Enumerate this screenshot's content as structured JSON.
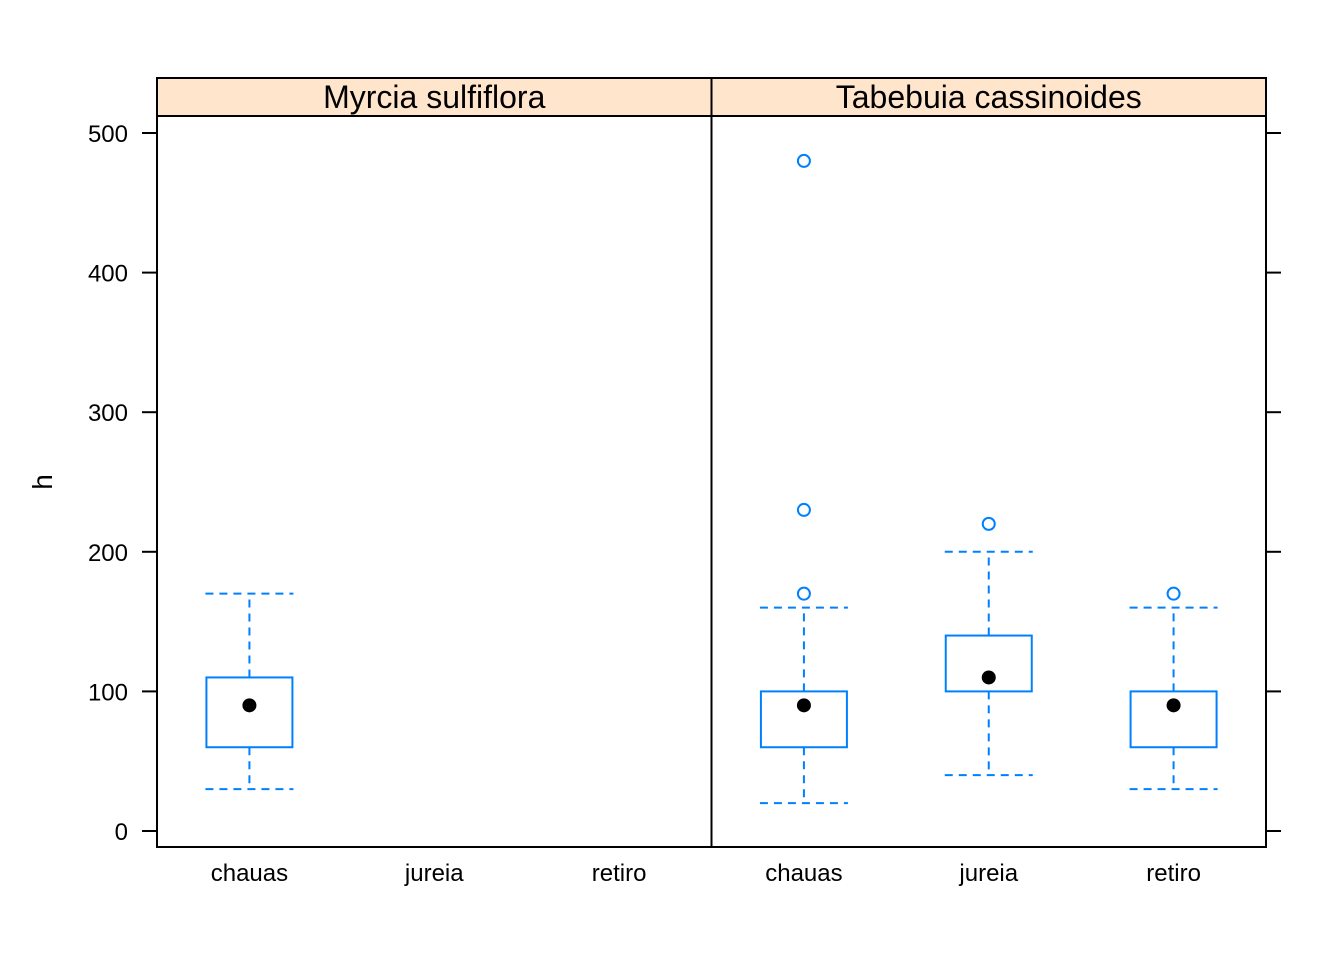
{
  "chart_data": {
    "type": "boxplot",
    "ylabel": "h",
    "ylim": [
      -12,
      512
    ],
    "y_ticks": [
      0,
      100,
      200,
      300,
      400,
      500
    ],
    "categories": [
      "chauas",
      "jureia",
      "retiro"
    ],
    "grid": false,
    "colors": {
      "box": "#0080ff",
      "median_dot": "#000000",
      "strip_bg": "#ffe5cc",
      "frame": "#000000"
    },
    "panels": [
      {
        "label": "Myrcia sulfiflora",
        "boxes": [
          {
            "category": "chauas",
            "whisker_low": 30,
            "q1": 60,
            "median": 90,
            "q3": 110,
            "whisker_high": 170,
            "outliers": []
          },
          {
            "category": "jureia",
            "empty": true
          },
          {
            "category": "retiro",
            "empty": true
          }
        ]
      },
      {
        "label": "Tabebuia cassinoides",
        "boxes": [
          {
            "category": "chauas",
            "whisker_low": 20,
            "q1": 60,
            "median": 90,
            "q3": 100,
            "whisker_high": 160,
            "outliers": [
              170,
              230,
              480
            ]
          },
          {
            "category": "jureia",
            "whisker_low": 40,
            "q1": 100,
            "median": 110,
            "q3": 140,
            "whisker_high": 200,
            "outliers": [
              220
            ]
          },
          {
            "category": "retiro",
            "whisker_low": 30,
            "q1": 60,
            "median": 90,
            "q3": 100,
            "whisker_high": 160,
            "outliers": [
              170
            ]
          }
        ]
      }
    ]
  }
}
